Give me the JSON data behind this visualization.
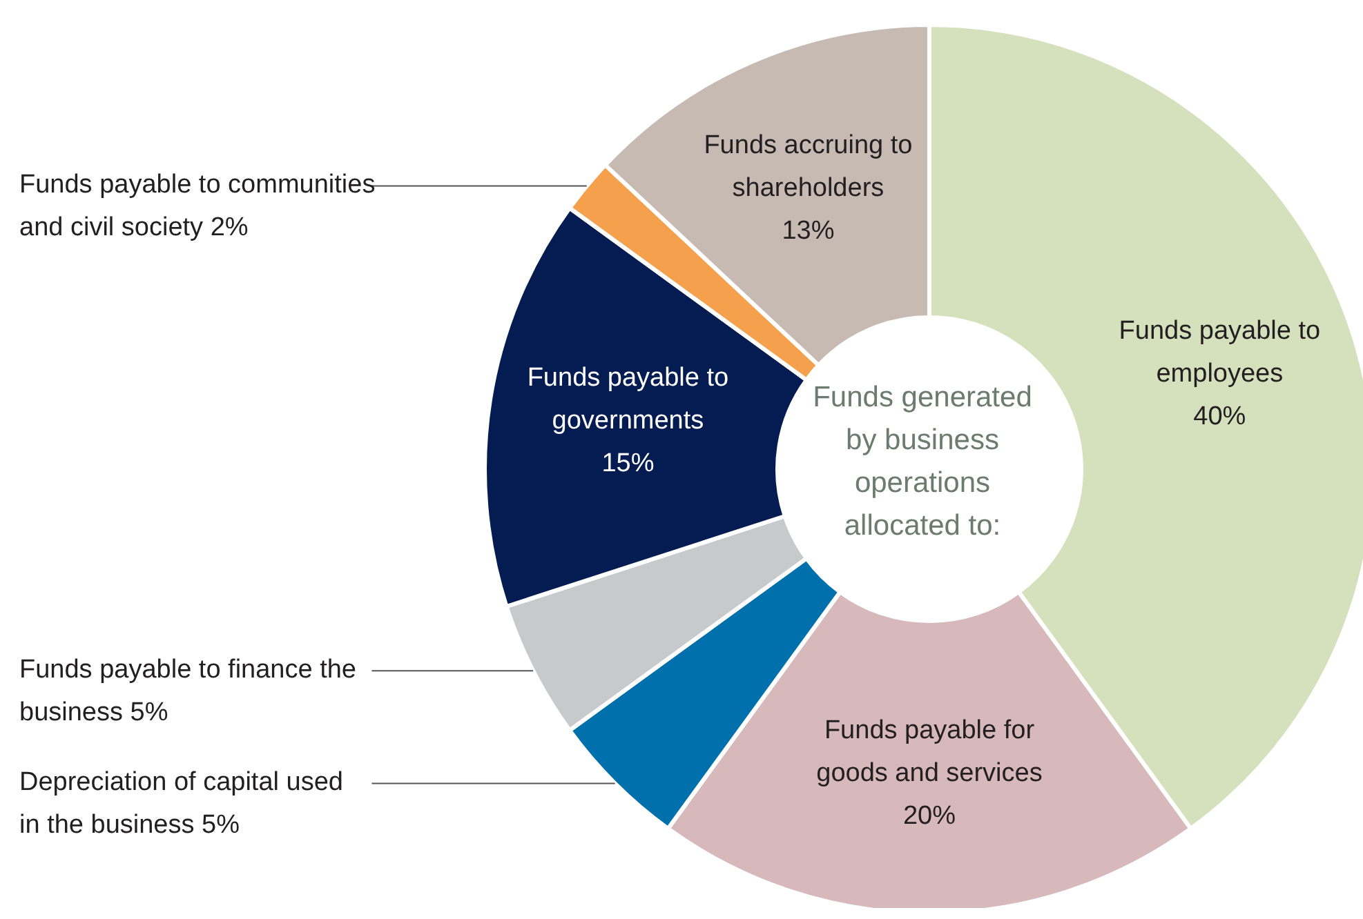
{
  "chart_data": {
    "type": "donut",
    "title": "Funds generated by business operations allocated to:",
    "categories": [
      "Funds payable to employees",
      "Funds payable for goods and services",
      "Depreciation of capital used in the business",
      "Funds payable to finance the business",
      "Funds payable to governments",
      "Funds payable to communities and civil society",
      "Funds accruing to shareholders"
    ],
    "values": [
      40,
      20,
      5,
      5,
      15,
      2,
      13
    ],
    "colors": [
      "#d5e0bd",
      "#d7b8bb",
      "#0070ad",
      "#c8c9cb",
      "#041c52",
      "#f5a04c",
      "#c7bab3"
    ],
    "value_labels": [
      "40%",
      "20%",
      "5%",
      "5%",
      "15%",
      "2%",
      "13%"
    ]
  }
}
